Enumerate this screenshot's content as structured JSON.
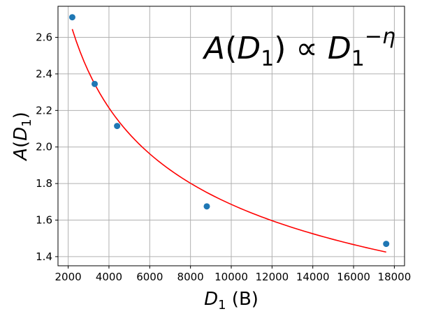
{
  "chart_data": {
    "type": "scatter",
    "xlabel": "D_1 (B)",
    "ylabel": "A(D_1)",
    "annotation": "A(D_1) ∝ D_1^{-η}",
    "xlim": [
      1500,
      18500
    ],
    "ylim": [
      1.35,
      2.77
    ],
    "xticks": [
      2000,
      4000,
      6000,
      8000,
      10000,
      12000,
      14000,
      16000,
      18000
    ],
    "yticks": [
      1.4,
      1.6,
      1.8,
      2.0,
      2.2,
      2.4,
      2.6
    ],
    "grid": true,
    "series": [
      {
        "kind": "scatter",
        "color": "#1f77b4",
        "points": [
          {
            "x": 2200,
            "y": 2.71
          },
          {
            "x": 3300,
            "y": 2.345
          },
          {
            "x": 4400,
            "y": 2.115
          },
          {
            "x": 8800,
            "y": 1.675
          },
          {
            "x": 17600,
            "y": 1.47
          }
        ]
      },
      {
        "kind": "fit-line",
        "color": "#ff0000",
        "x_start": 2200,
        "x_end": 17600,
        "y_start": 2.645,
        "y_end": 1.425
      }
    ]
  }
}
